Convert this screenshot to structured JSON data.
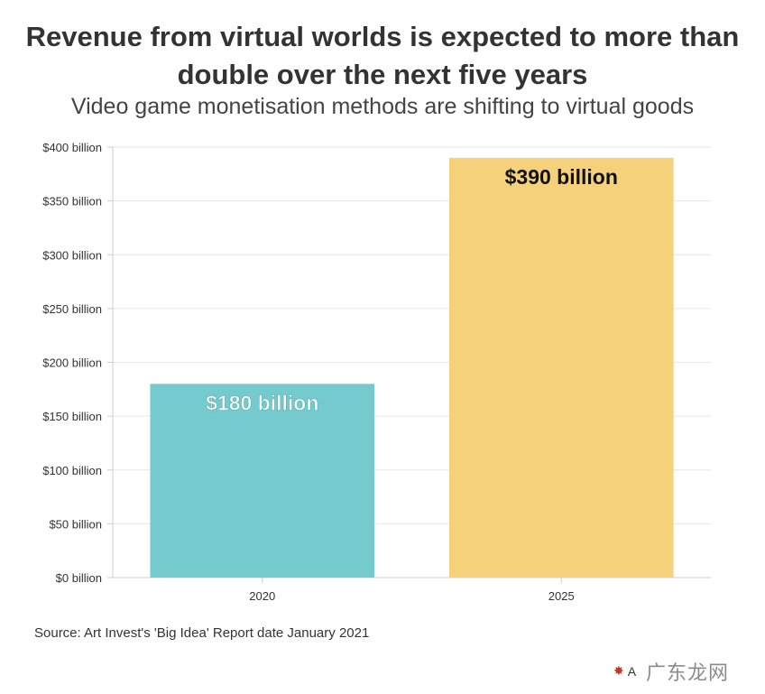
{
  "chart_data": {
    "type": "bar",
    "title": "Revenue from virtual worlds is expected to more than double over the next five years",
    "subtitle": "Video game monetisation methods are shifting to virtual goods",
    "categories": [
      "2020",
      "2025"
    ],
    "values": [
      180,
      390
    ],
    "data_labels": [
      "$180 billion",
      "$390 billion"
    ],
    "bar_colors": [
      "#74cacd",
      "#f5d17c"
    ],
    "label_colors": [
      "#ffffff",
      "#111111"
    ],
    "ylim": [
      0,
      400
    ],
    "yticks": [
      0,
      50,
      100,
      150,
      200,
      250,
      300,
      350,
      400
    ],
    "ytick_labels": [
      "$0 billion",
      "$50 billion",
      "$100 billion",
      "$150 billion",
      "$200 billion",
      "$250 billion",
      "$300 billion",
      "$350 billion",
      "$400 billion"
    ],
    "xlabel": "",
    "ylabel": "",
    "grid": true
  },
  "source": "Source: Art Invest's 'Big Idea' Report date January 2021",
  "logo_text": "A",
  "watermark_text": "广东龙网"
}
